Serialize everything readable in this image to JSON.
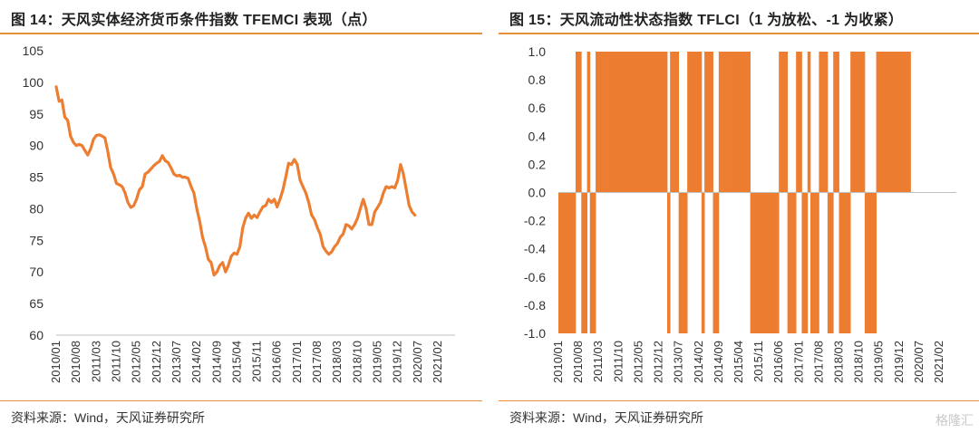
{
  "colors": {
    "accent": "#ed7d31",
    "rule": "#e8903a",
    "axis": "#bfbfbf",
    "text": "#222222"
  },
  "left": {
    "title": "图 14：天风实体经济货币条件指数 TFEMCI 表现（点）",
    "source": "资料来源：Wind，天风证券研究所"
  },
  "right": {
    "title": "图 15：天风流动性状态指数 TFLCI（1 为放松、-1 为收紧）",
    "source": "资料来源：Wind，天风证券研究所"
  },
  "watermark": "格隆汇",
  "chart_data": [
    {
      "type": "line",
      "title": "图 14：天风实体经济货币条件指数 TFEMCI 表现（点）",
      "ylim": [
        60,
        105
      ],
      "yticks": [
        60,
        65,
        70,
        75,
        80,
        85,
        90,
        95,
        100,
        105
      ],
      "x_start": "2010/01",
      "x_end": "2021/08",
      "xtick_labels": [
        "2010/01",
        "2010/08",
        "2011/03",
        "2011/10",
        "2012/05",
        "2012/12",
        "2013/07",
        "2014/02",
        "2014/09",
        "2015/04",
        "2015/11",
        "2016/06",
        "2017/01",
        "2017/08",
        "2018/03",
        "2018/10",
        "2019/05",
        "2019/12",
        "2020/07",
        "2021/02"
      ],
      "series": [
        {
          "points": [
            [
              "2010/01",
              99.3
            ],
            [
              "2010/02",
              97.0
            ],
            [
              "2010/03",
              97.2
            ],
            [
              "2010/04",
              94.5
            ],
            [
              "2010/05",
              94.0
            ],
            [
              "2010/06",
              91.5
            ],
            [
              "2010/07",
              90.5
            ],
            [
              "2010/08",
              90.0
            ],
            [
              "2010/09",
              90.2
            ],
            [
              "2010/10",
              90.0
            ],
            [
              "2010/11",
              89.2
            ],
            [
              "2010/12",
              88.5
            ],
            [
              "2011/01",
              89.5
            ],
            [
              "2011/02",
              91.0
            ],
            [
              "2011/03",
              91.6
            ],
            [
              "2011/04",
              91.7
            ],
            [
              "2011/05",
              91.5
            ],
            [
              "2011/06",
              91.2
            ],
            [
              "2011/07",
              89.0
            ],
            [
              "2011/08",
              86.5
            ],
            [
              "2011/09",
              85.5
            ],
            [
              "2011/10",
              84.0
            ],
            [
              "2011/11",
              83.8
            ],
            [
              "2011/12",
              83.5
            ],
            [
              "2012/01",
              82.5
            ],
            [
              "2012/02",
              81.0
            ],
            [
              "2012/03",
              80.2
            ],
            [
              "2012/04",
              80.5
            ],
            [
              "2012/05",
              81.5
            ],
            [
              "2012/06",
              83.0
            ],
            [
              "2012/07",
              83.5
            ],
            [
              "2012/08",
              85.5
            ],
            [
              "2012/09",
              85.8
            ],
            [
              "2012/10",
              86.3
            ],
            [
              "2012/11",
              86.8
            ],
            [
              "2012/12",
              87.2
            ],
            [
              "2013/01",
              87.5
            ],
            [
              "2013/02",
              88.4
            ],
            [
              "2013/03",
              87.6
            ],
            [
              "2013/04",
              87.3
            ],
            [
              "2013/05",
              86.5
            ],
            [
              "2013/06",
              85.5
            ],
            [
              "2013/07",
              85.2
            ],
            [
              "2013/08",
              85.3
            ],
            [
              "2013/09",
              85.0
            ],
            [
              "2013/10",
              85.0
            ],
            [
              "2013/11",
              84.8
            ],
            [
              "2013/12",
              83.5
            ],
            [
              "2014/01",
              82.5
            ],
            [
              "2014/02",
              80.0
            ],
            [
              "2014/03",
              78.0
            ],
            [
              "2014/04",
              75.5
            ],
            [
              "2014/05",
              74.0
            ],
            [
              "2014/06",
              72.0
            ],
            [
              "2014/07",
              71.5
            ],
            [
              "2014/08",
              69.5
            ],
            [
              "2014/09",
              70.0
            ],
            [
              "2014/10",
              71.0
            ],
            [
              "2014/11",
              71.5
            ],
            [
              "2014/12",
              70.0
            ],
            [
              "2015/01",
              71.0
            ],
            [
              "2015/02",
              72.5
            ],
            [
              "2015/03",
              73.0
            ],
            [
              "2015/04",
              72.8
            ],
            [
              "2015/05",
              74.0
            ],
            [
              "2015/06",
              77.0
            ],
            [
              "2015/07",
              78.5
            ],
            [
              "2015/08",
              79.3
            ],
            [
              "2015/09",
              78.5
            ],
            [
              "2015/10",
              79.0
            ],
            [
              "2015/11",
              78.6
            ],
            [
              "2015/12",
              79.5
            ],
            [
              "2016/01",
              80.3
            ],
            [
              "2016/02",
              80.5
            ],
            [
              "2016/03",
              81.5
            ],
            [
              "2016/04",
              81.0
            ],
            [
              "2016/05",
              81.5
            ],
            [
              "2016/06",
              80.3
            ],
            [
              "2016/07",
              81.5
            ],
            [
              "2016/08",
              83.0
            ],
            [
              "2016/09",
              85.0
            ],
            [
              "2016/10",
              87.2
            ],
            [
              "2016/11",
              87.0
            ],
            [
              "2016/12",
              87.8
            ],
            [
              "2017/01",
              87.0
            ],
            [
              "2017/02",
              84.5
            ],
            [
              "2017/03",
              83.5
            ],
            [
              "2017/04",
              82.5
            ],
            [
              "2017/05",
              81.0
            ],
            [
              "2017/06",
              79.0
            ],
            [
              "2017/07",
              78.3
            ],
            [
              "2017/08",
              77.0
            ],
            [
              "2017/09",
              76.0
            ],
            [
              "2017/10",
              74.0
            ],
            [
              "2017/11",
              73.3
            ],
            [
              "2017/12",
              72.8
            ],
            [
              "2018/01",
              73.2
            ],
            [
              "2018/02",
              74.0
            ],
            [
              "2018/03",
              74.5
            ],
            [
              "2018/04",
              75.5
            ],
            [
              "2018/05",
              76.0
            ],
            [
              "2018/06",
              77.5
            ],
            [
              "2018/07",
              77.3
            ],
            [
              "2018/08",
              76.8
            ],
            [
              "2018/09",
              77.5
            ],
            [
              "2018/10",
              78.5
            ],
            [
              "2018/11",
              80.0
            ],
            [
              "2018/12",
              81.5
            ],
            [
              "2019/01",
              80.0
            ],
            [
              "2019/02",
              77.5
            ],
            [
              "2019/03",
              77.5
            ],
            [
              "2019/04",
              79.5
            ],
            [
              "2019/05",
              80.2
            ],
            [
              "2019/06",
              81.0
            ],
            [
              "2019/07",
              82.5
            ],
            [
              "2019/08",
              83.5
            ],
            [
              "2019/09",
              83.3
            ],
            [
              "2019/10",
              83.5
            ],
            [
              "2019/11",
              83.3
            ],
            [
              "2019/12",
              84.5
            ],
            [
              "2020/01",
              87.0
            ],
            [
              "2020/02",
              85.5
            ],
            [
              "2020/03",
              83.0
            ],
            [
              "2020/04",
              80.5
            ],
            [
              "2020/05",
              79.5
            ],
            [
              "2020/06",
              79.0
            ]
          ]
        }
      ]
    },
    {
      "type": "area",
      "title": "图 15：天风流动性状态指数 TFLCI（1 为放松、-1 为收紧）",
      "ylim": [
        -1.0,
        1.0
      ],
      "yticks": [
        "-1.0",
        "-0.8",
        "-0.6",
        "-0.4",
        "-0.2",
        "0.0",
        "0.2",
        "0.4",
        "0.6",
        "0.8",
        "1.0"
      ],
      "x_start": "2010/01",
      "x_end": "2021/08",
      "xtick_labels": [
        "2010/01",
        "2010/08",
        "2011/03",
        "2011/10",
        "2012/05",
        "2012/12",
        "2013/07",
        "2014/02",
        "2014/09",
        "2015/04",
        "2015/11",
        "2016/06",
        "2017/01",
        "2017/08",
        "2018/03",
        "2018/10",
        "2019/05",
        "2019/12",
        "2020/07",
        "2021/02"
      ],
      "segments": [
        [
          "2010/01",
          -1
        ],
        [
          "2010/02",
          -1
        ],
        [
          "2010/03",
          -1
        ],
        [
          "2010/04",
          -1
        ],
        [
          "2010/05",
          -1
        ],
        [
          "2010/06",
          -1
        ],
        [
          "2010/07",
          1
        ],
        [
          "2010/08",
          1
        ],
        [
          "2010/09",
          -1
        ],
        [
          "2010/10",
          -1
        ],
        [
          "2010/11",
          1
        ],
        [
          "2010/12",
          -1
        ],
        [
          "2011/01",
          -1
        ],
        [
          "2011/02",
          1
        ],
        [
          "2011/03",
          1
        ],
        [
          "2011/04",
          1
        ],
        [
          "2011/05",
          1
        ],
        [
          "2011/06",
          1
        ],
        [
          "2011/07",
          1
        ],
        [
          "2011/08",
          1
        ],
        [
          "2011/09",
          1
        ],
        [
          "2011/10",
          1
        ],
        [
          "2011/11",
          1
        ],
        [
          "2011/12",
          1
        ],
        [
          "2012/01",
          1
        ],
        [
          "2012/02",
          1
        ],
        [
          "2012/03",
          1
        ],
        [
          "2012/04",
          1
        ],
        [
          "2012/05",
          1
        ],
        [
          "2012/06",
          1
        ],
        [
          "2012/07",
          1
        ],
        [
          "2012/08",
          1
        ],
        [
          "2012/09",
          1
        ],
        [
          "2012/10",
          1
        ],
        [
          "2012/11",
          1
        ],
        [
          "2012/12",
          1
        ],
        [
          "2013/01",
          1
        ],
        [
          "2013/02",
          1
        ],
        [
          "2013/03",
          -1
        ],
        [
          "2013/04",
          1
        ],
        [
          "2013/05",
          1
        ],
        [
          "2013/06",
          1
        ],
        [
          "2013/07",
          -1
        ],
        [
          "2013/08",
          -1
        ],
        [
          "2013/09",
          -1
        ],
        [
          "2013/10",
          1
        ],
        [
          "2013/11",
          1
        ],
        [
          "2013/12",
          1
        ],
        [
          "2014/01",
          1
        ],
        [
          "2014/02",
          1
        ],
        [
          "2014/03",
          -1
        ],
        [
          "2014/04",
          1
        ],
        [
          "2014/05",
          1
        ],
        [
          "2014/06",
          1
        ],
        [
          "2014/07",
          -1
        ],
        [
          "2014/08",
          -1
        ],
        [
          "2014/09",
          1
        ],
        [
          "2014/10",
          1
        ],
        [
          "2014/11",
          1
        ],
        [
          "2014/12",
          1
        ],
        [
          "2015/01",
          1
        ],
        [
          "2015/02",
          1
        ],
        [
          "2015/03",
          1
        ],
        [
          "2015/04",
          1
        ],
        [
          "2015/05",
          1
        ],
        [
          "2015/06",
          1
        ],
        [
          "2015/07",
          1
        ],
        [
          "2015/08",
          -1
        ],
        [
          "2015/09",
          -1
        ],
        [
          "2015/10",
          -1
        ],
        [
          "2015/11",
          -1
        ],
        [
          "2015/12",
          -1
        ],
        [
          "2016/01",
          -1
        ],
        [
          "2016/02",
          -1
        ],
        [
          "2016/03",
          -1
        ],
        [
          "2016/04",
          -1
        ],
        [
          "2016/05",
          -1
        ],
        [
          "2016/06",
          1
        ],
        [
          "2016/07",
          1
        ],
        [
          "2016/08",
          1
        ],
        [
          "2016/09",
          -1
        ],
        [
          "2016/10",
          -1
        ],
        [
          "2016/11",
          -1
        ],
        [
          "2016/12",
          1
        ],
        [
          "2017/01",
          1
        ],
        [
          "2017/02",
          -1
        ],
        [
          "2017/03",
          -1
        ],
        [
          "2017/04",
          1
        ],
        [
          "2017/05",
          -1
        ],
        [
          "2017/06",
          -1
        ],
        [
          "2017/07",
          -1
        ],
        [
          "2017/08",
          1
        ],
        [
          "2017/09",
          1
        ],
        [
          "2017/10",
          1
        ],
        [
          "2017/11",
          -1
        ],
        [
          "2017/12",
          -1
        ],
        [
          "2018/01",
          1
        ],
        [
          "2018/02",
          1
        ],
        [
          "2018/03",
          -1
        ],
        [
          "2018/04",
          -1
        ],
        [
          "2018/05",
          -1
        ],
        [
          "2018/06",
          -1
        ],
        [
          "2018/07",
          1
        ],
        [
          "2018/08",
          1
        ],
        [
          "2018/09",
          1
        ],
        [
          "2018/10",
          1
        ],
        [
          "2018/11",
          1
        ],
        [
          "2018/12",
          -1
        ],
        [
          "2019/01",
          -1
        ],
        [
          "2019/02",
          -1
        ],
        [
          "2019/03",
          -1
        ],
        [
          "2019/04",
          1
        ],
        [
          "2019/05",
          1
        ],
        [
          "2019/06",
          1
        ],
        [
          "2019/07",
          1
        ],
        [
          "2019/08",
          1
        ],
        [
          "2019/09",
          1
        ],
        [
          "2019/10",
          1
        ],
        [
          "2019/11",
          1
        ],
        [
          "2019/12",
          1
        ],
        [
          "2020/01",
          1
        ],
        [
          "2020/02",
          1
        ],
        [
          "2020/03",
          1
        ]
      ]
    }
  ]
}
